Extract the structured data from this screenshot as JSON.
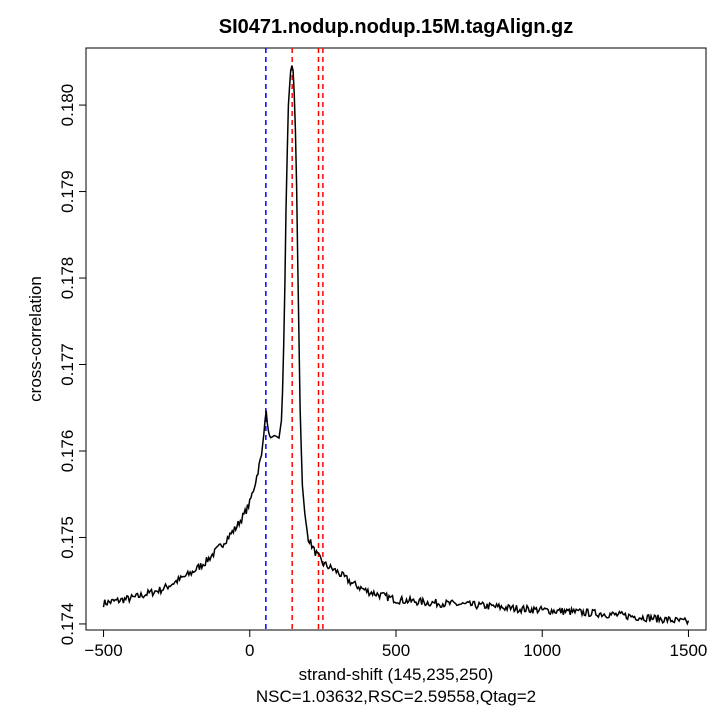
{
  "chart_data": {
    "type": "line",
    "title": "SI0471.nodup.nodup.15M.tagAlign.gz",
    "xlabel": "strand-shift (145,235,250)",
    "subtitle": "NSC=1.03632,RSC=2.59558,Qtag=2",
    "ylabel": "cross-correlation",
    "xlim": [
      -560,
      1560
    ],
    "ylim": [
      0.17393,
      0.18066
    ],
    "xticks": [
      -500,
      0,
      500,
      1000,
      1500
    ],
    "xtick_labels": [
      "−500",
      "0",
      "500",
      "1000",
      "1500"
    ],
    "yticks": [
      0.174,
      0.175,
      0.176,
      0.177,
      0.178,
      0.179,
      0.18
    ],
    "ytick_labels": [
      "0.174",
      "0.175",
      "0.176",
      "0.177",
      "0.178",
      "0.179",
      "0.180"
    ],
    "series": [
      {
        "name": "cross-correlation",
        "color": "#000000",
        "x": [
          -500,
          -400,
          -300,
          -200,
          -150,
          -100,
          -50,
          -20,
          0,
          20,
          40,
          50,
          55,
          62,
          70,
          85,
          100,
          110,
          118,
          125,
          132,
          140,
          145,
          150,
          158,
          165,
          172,
          180,
          190,
          200,
          220,
          250,
          300,
          350,
          400,
          500,
          600,
          700,
          800,
          900,
          1000,
          1100,
          1200,
          1300,
          1400,
          1500
        ],
        "y": [
          0.17424,
          0.1743,
          0.1744,
          0.17459,
          0.17472,
          0.1749,
          0.1751,
          0.17526,
          0.1754,
          0.17565,
          0.17595,
          0.17625,
          0.1765,
          0.17625,
          0.17615,
          0.17618,
          0.17615,
          0.1764,
          0.1775,
          0.179,
          0.18,
          0.1804,
          0.18047,
          0.18035,
          0.1795,
          0.178,
          0.1765,
          0.1756,
          0.1752,
          0.175,
          0.17485,
          0.1747,
          0.1746,
          0.17447,
          0.17438,
          0.17428,
          0.17425,
          0.17423,
          0.17421,
          0.17418,
          0.17416,
          0.17414,
          0.17412,
          0.17409,
          0.17406,
          0.17402
        ]
      }
    ],
    "vlines": [
      {
        "x": 55,
        "color": "#0000ff"
      },
      {
        "x": 145,
        "color": "#ff0000"
      },
      {
        "x": 235,
        "color": "#ff0000"
      },
      {
        "x": 250,
        "color": "#ff0000"
      }
    ],
    "grid": false
  }
}
